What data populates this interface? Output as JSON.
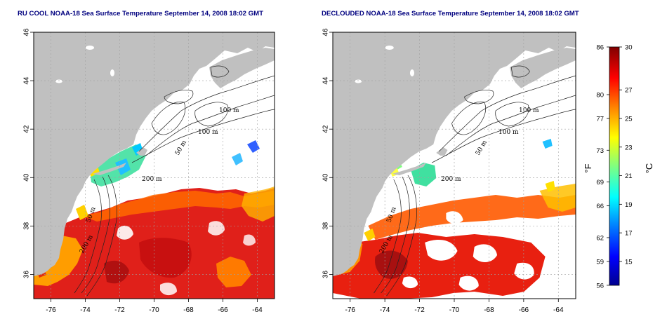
{
  "panels": [
    {
      "id": "left",
      "title": "RU COOL NOAA-18 Sea Surface Temperature September 14, 2008 18:02 GMT",
      "contour_labels": [
        "100 m",
        "100 m",
        "50 m",
        "200 m",
        "50 m",
        "200 m"
      ]
    },
    {
      "id": "right",
      "title": "DECLOUDED NOAA-18 Sea Surface Temperature September 14, 2008 18:02 GMT",
      "contour_labels": [
        "100 m",
        "100 m",
        "50 m",
        "200 m",
        "50 m",
        "200 m"
      ]
    }
  ],
  "axes": {
    "lon_ticks": [
      "-76",
      "-74",
      "-72",
      "-70",
      "-68",
      "-66",
      "-64"
    ],
    "lat_ticks": [
      "36",
      "38",
      "40",
      "42",
      "44",
      "46"
    ]
  },
  "colorbar": {
    "fahrenheit_unit": "°F",
    "celsius_unit": "°C",
    "fahrenheit_ticks": [
      "86",
      "80",
      "77",
      "73",
      "69",
      "66",
      "62",
      "59",
      "56"
    ],
    "celsius_ticks": [
      "30",
      "27",
      "25",
      "23",
      "21",
      "19",
      "17",
      "15"
    ],
    "colors": [
      "#00008f",
      "#0000ff",
      "#0080ff",
      "#00ffff",
      "#80ff80",
      "#ffff00",
      "#ff8000",
      "#ff0000",
      "#800000"
    ]
  },
  "colors": {
    "land": "#c0c0c0",
    "ocean_no_data": "#ffffff",
    "title": "#00007f",
    "grid": "#a0a0a0"
  }
}
